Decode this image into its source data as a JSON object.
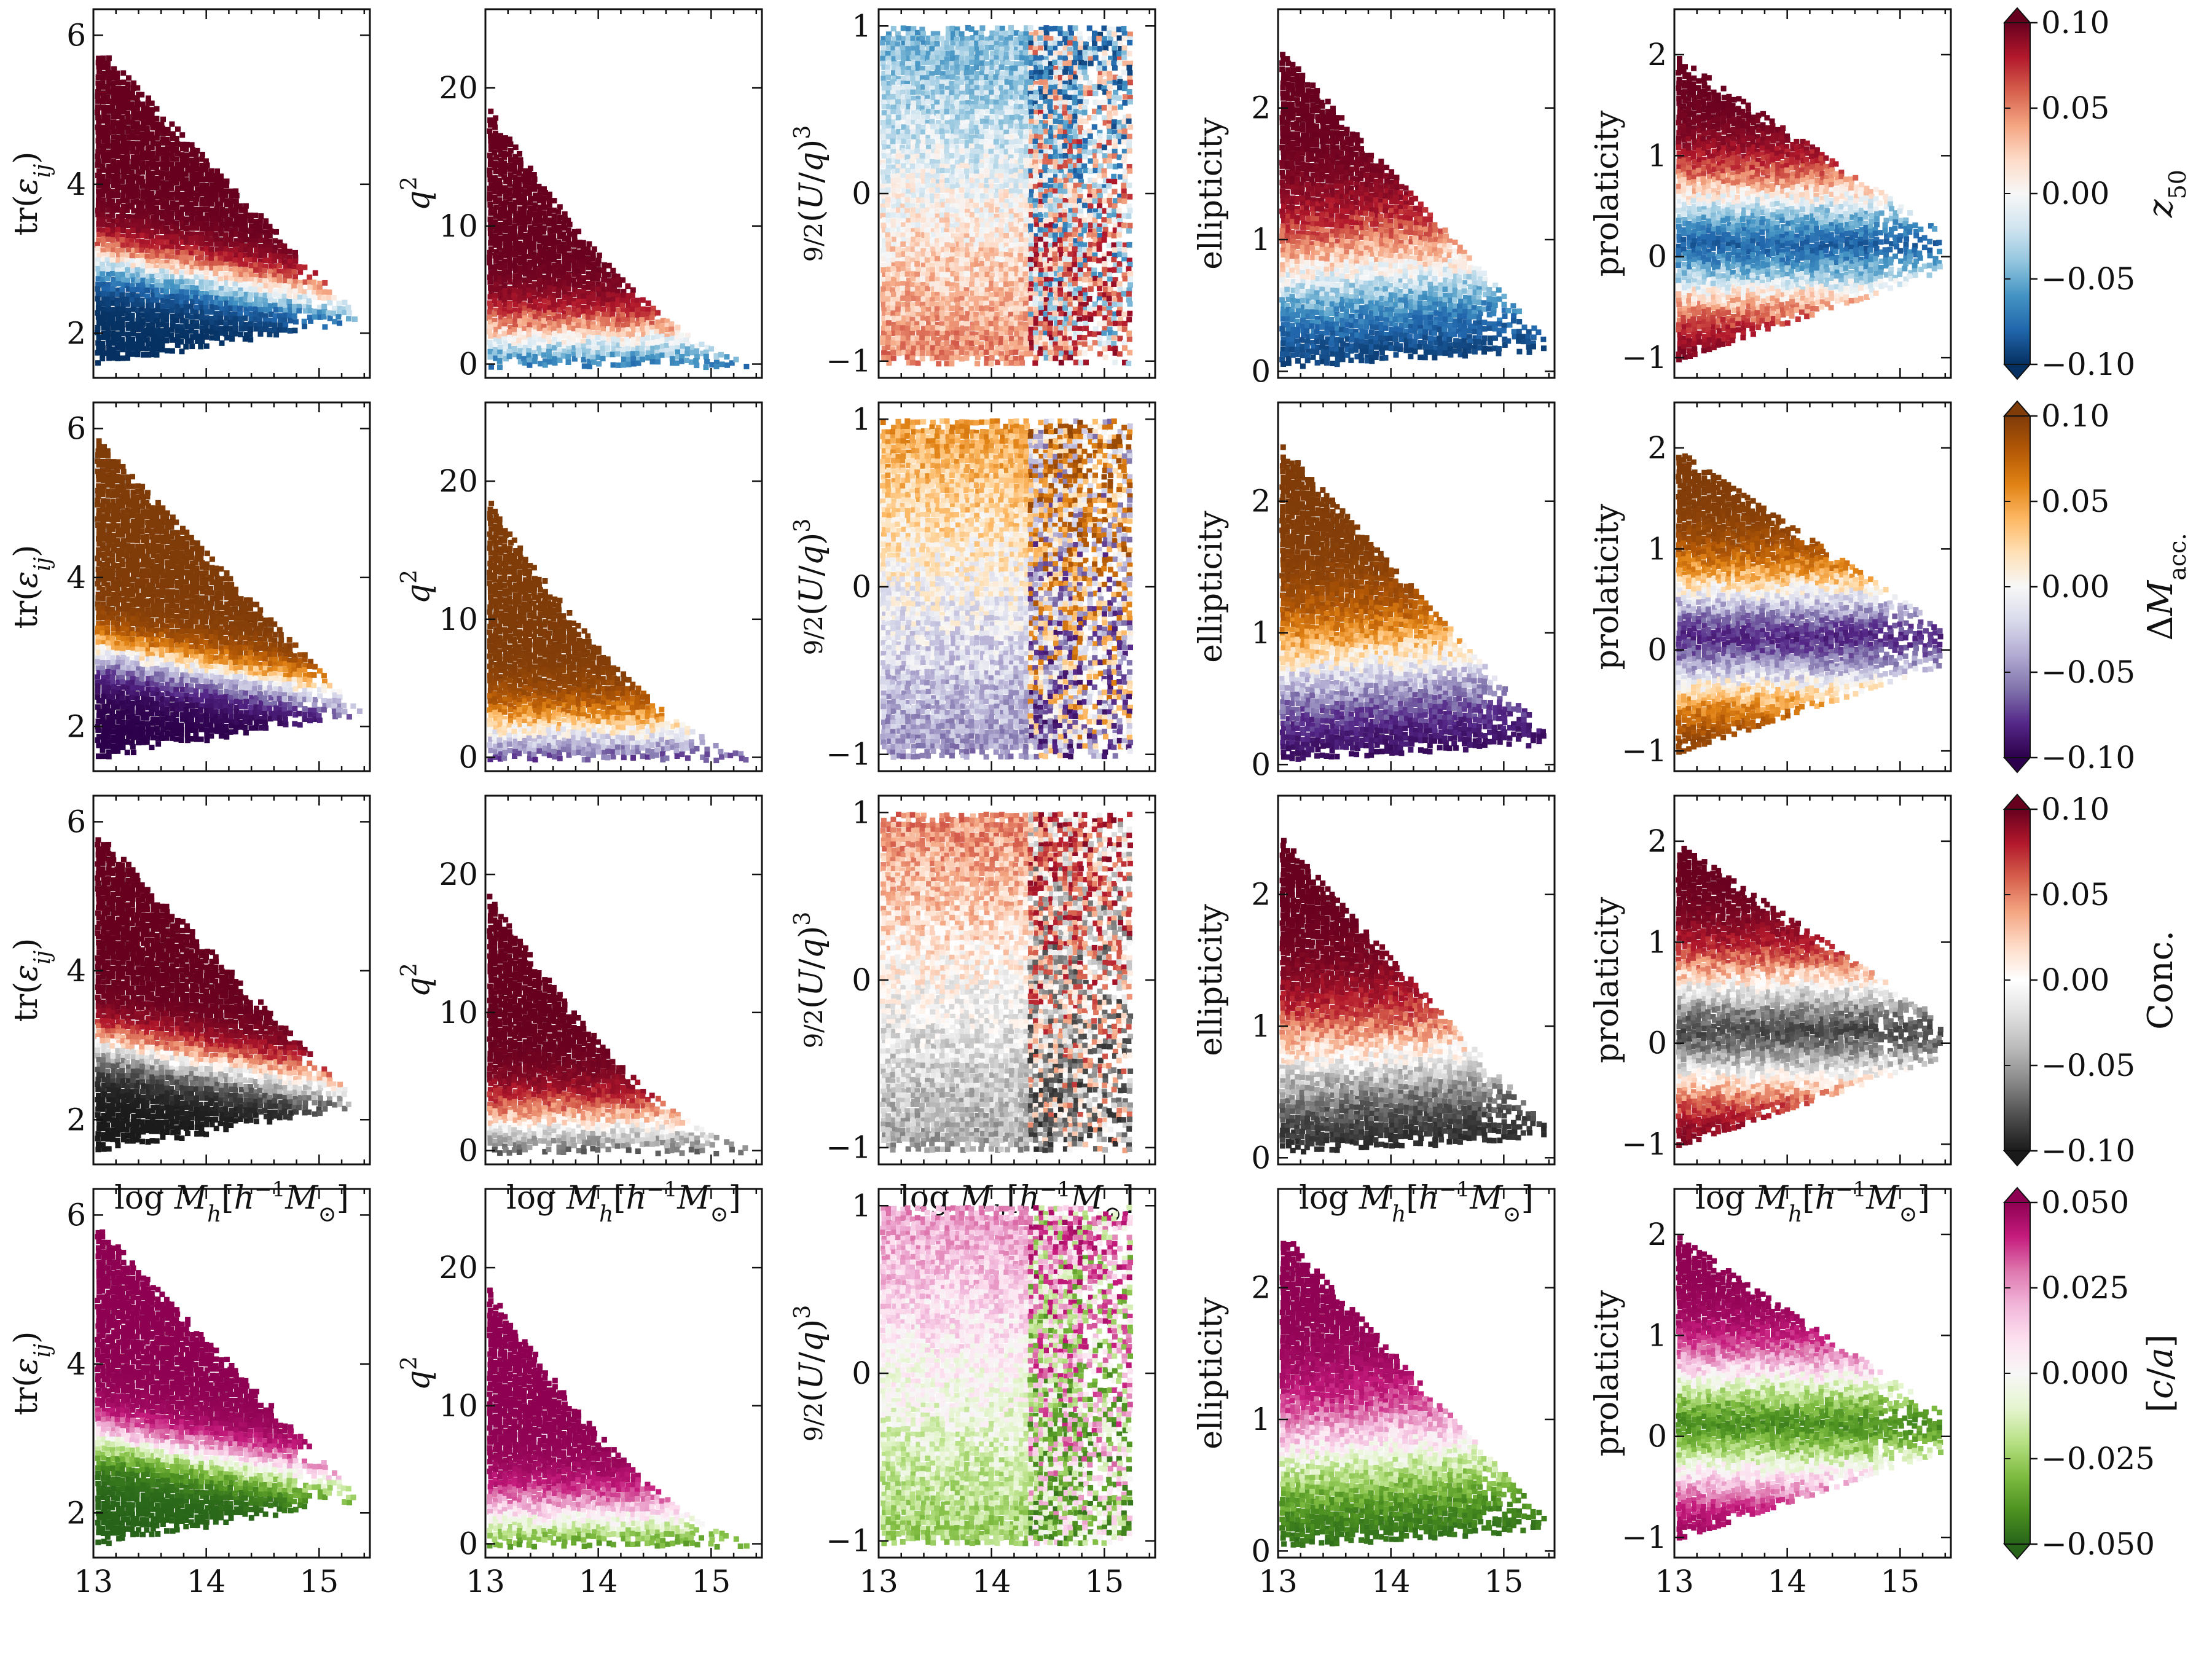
{
  "figure_type": "hexbin",
  "colormaps": {
    "RdBu_r": [
      "#053061",
      "#2166ac",
      "#4393c3",
      "#92c5de",
      "#d1e5f0",
      "#f7f7f7",
      "#fddbc7",
      "#f4a582",
      "#d6604d",
      "#b2182b",
      "#67001f"
    ],
    "PuOr_r": [
      "#2d004b",
      "#542788",
      "#8073ac",
      "#b2abd2",
      "#d8daeb",
      "#f7f7f7",
      "#fee0b6",
      "#fdb863",
      "#e08214",
      "#b35806",
      "#7f3b08"
    ],
    "RdGy_r": [
      "#1a1a1a",
      "#4d4d4d",
      "#878787",
      "#bababa",
      "#e0e0e0",
      "#ffffff",
      "#fddbc7",
      "#f4a582",
      "#d6604d",
      "#b2182b",
      "#67001f"
    ],
    "PiYG_r": [
      "#276419",
      "#4d9221",
      "#7fbc41",
      "#b8e186",
      "#e6f5d0",
      "#f7f7f7",
      "#fde0ef",
      "#f1b6da",
      "#de77ae",
      "#c51b7d",
      "#8e0152"
    ]
  },
  "chart_data": {
    "type": "hexbin",
    "x_label": "log M_h [h^-1 M_sun]",
    "x_range": [
      13.0,
      15.45
    ],
    "x_ticks": [
      "13",
      "14",
      "15"
    ],
    "columns": [
      {
        "key": "tr",
        "ylabel": "tr(ε_ij)",
        "ylim": [
          1.4,
          6.35
        ],
        "yticks": [
          "2",
          "4",
          "6"
        ]
      },
      {
        "key": "q2",
        "ylabel": "q^2",
        "ylim": [
          -1.0,
          25.7
        ],
        "yticks": [
          "0",
          "10",
          "20"
        ]
      },
      {
        "key": "U",
        "ylabel": "9/2 (U/q)^3",
        "ylim": [
          -1.1,
          1.1
        ],
        "yticks": [
          "−1",
          "0",
          "1"
        ]
      },
      {
        "key": "ell",
        "ylabel": "ellipticity",
        "ylim": [
          -0.05,
          2.75
        ],
        "yticks": [
          "0",
          "1",
          "2"
        ]
      },
      {
        "key": "pro",
        "ylabel": "prolaticity",
        "ylim": [
          -1.2,
          2.45
        ],
        "yticks": [
          "−1",
          "0",
          "1",
          "2"
        ]
      }
    ],
    "rows": [
      {
        "property": "z50",
        "cmap": "RdBu_r",
        "clim": [
          -0.1,
          0.1
        ],
        "cbar_ticks": [
          "−0.10",
          "−0.05",
          "0.00",
          "0.05",
          "0.10"
        ],
        "gradient_signs": [
          1,
          1,
          -1,
          1,
          1
        ]
      },
      {
        "property": "ΔM_acc.",
        "cmap": "PuOr_r",
        "clim": [
          -0.1,
          0.1
        ],
        "cbar_ticks": [
          "−0.10",
          "−0.05",
          "0.00",
          "0.05",
          "0.10"
        ],
        "gradient_signs": [
          1,
          1,
          1,
          1,
          1
        ]
      },
      {
        "property": "Conc.",
        "cmap": "RdGy_r",
        "clim": [
          -0.1,
          0.1
        ],
        "cbar_ticks": [
          "−0.10",
          "−0.05",
          "0.00",
          "0.05",
          "0.10"
        ],
        "gradient_signs": [
          1,
          1,
          1,
          1,
          1
        ]
      },
      {
        "property": "[c/a]",
        "cmap": "PiYG_r",
        "clim": [
          -0.05,
          0.05
        ],
        "cbar_ticks": [
          "−0.050",
          "−0.025",
          "0.000",
          "0.025",
          "0.050"
        ],
        "gradient_signs": [
          1,
          1,
          1,
          1,
          1
        ]
      }
    ]
  }
}
